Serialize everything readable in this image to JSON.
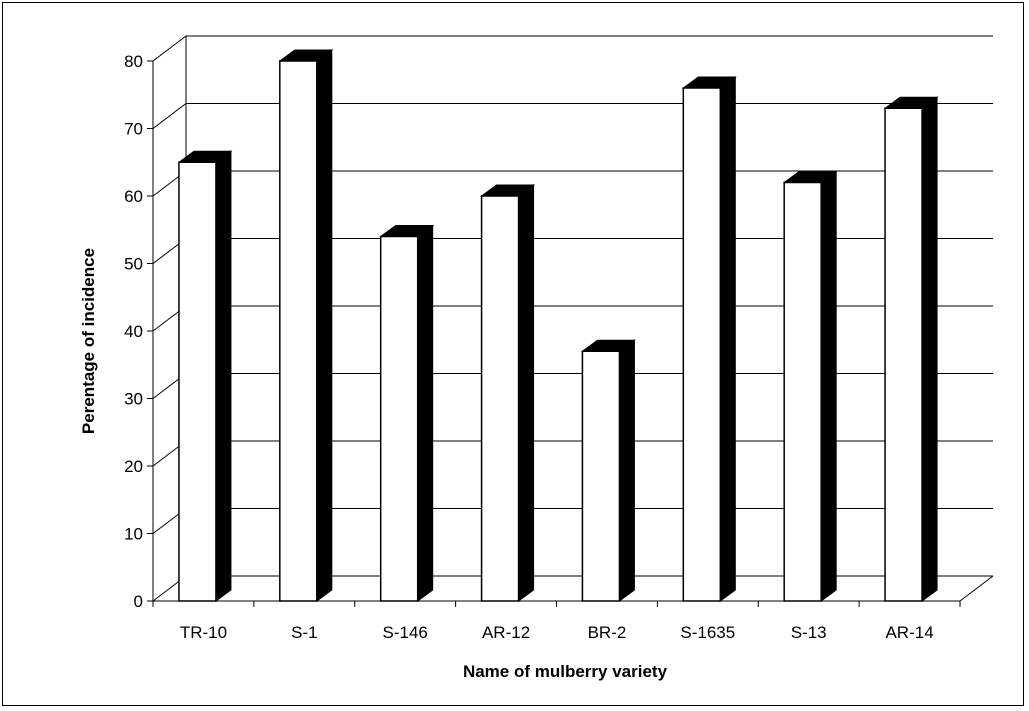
{
  "chart_data": {
    "type": "bar",
    "title": "",
    "xlabel": "Name of mulberry variety",
    "ylabel": "Perentage of incidence",
    "categories": [
      "TR-10",
      "S-1",
      "S-146",
      "AR-12",
      "BR-2",
      "S-1635",
      "S-13",
      "AR-14"
    ],
    "series": [
      {
        "values": [
          65,
          80,
          54,
          60,
          37,
          76,
          62,
          73
        ]
      }
    ],
    "ylim": [
      0,
      80
    ],
    "yticks": [
      0,
      10,
      20,
      30,
      40,
      50,
      60,
      70,
      80
    ],
    "grid": true,
    "style": "3d-bar",
    "colors": {
      "bar_face": "#ffffff",
      "bar_side": "#000000",
      "grid": "#000000"
    }
  }
}
